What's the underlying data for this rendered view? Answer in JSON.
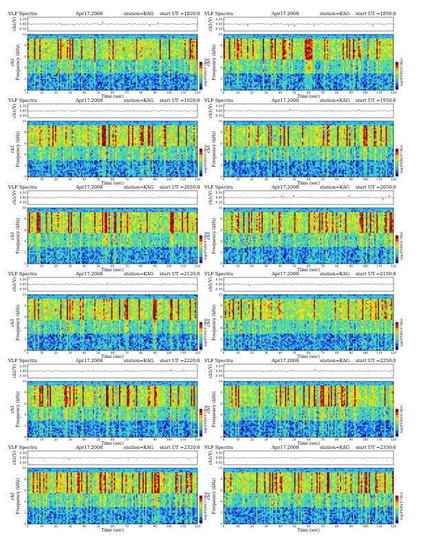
{
  "page_title": "VLF Spectra",
  "colors": {
    "colormap": [
      "#0a1a9a",
      "#1f57e6",
      "#33b8ee",
      "#4fd9a8",
      "#7fe05a",
      "#d8ec22",
      "#f0c020",
      "#e23a12",
      "#9a0a0a"
    ]
  },
  "chart_data": [
    {
      "type": "heatmap",
      "title": "VLF Spectra",
      "month": "Apr17.2008",
      "station": "station=KAG",
      "start": "start  UT =1820:0",
      "ts_ylabel": "ch1(V)",
      "ts_ticks": [
        "0.30",
        "0.00",
        "-0.30"
      ],
      "ylabel": "Frequency (kHz)",
      "xlabel": "Time (sec)",
      "xlim": [
        0,
        120
      ],
      "ylim": [
        0,
        10
      ],
      "xticks": [
        0,
        10,
        20,
        30,
        40,
        50,
        60,
        70,
        80,
        90,
        100,
        110,
        120
      ],
      "yticks": [
        0,
        2,
        4,
        6,
        8,
        10
      ],
      "colorbar_label": "log(PSD)(V²/Hz)",
      "colorbar_ticks": [
        "-",
        "-"
      ]
    },
    {
      "type": "heatmap",
      "title": "VLF Spectra",
      "month": "Apr17.2008",
      "station": "station=KAG",
      "start": "start  UT =1850:0",
      "ts_ylabel": "ch1(V)",
      "ts_ticks": [
        "0.30",
        "0.00",
        "-0.30"
      ],
      "ylabel": "Frequency (kHz)",
      "xlabel": "Time (sec)",
      "xlim": [
        0,
        120
      ],
      "ylim": [
        0,
        10
      ],
      "xticks": [
        0,
        10,
        20,
        30,
        40,
        50,
        60,
        70,
        80,
        90,
        100,
        110,
        120
      ],
      "yticks": [
        0,
        2,
        4,
        6,
        8,
        10
      ],
      "colorbar_label": "log(PSD)(V²/Hz)",
      "colorbar_ticks": [
        "-",
        "-"
      ]
    },
    {
      "type": "heatmap",
      "title": "VLF Spectra",
      "month": "Apr17.2008",
      "station": "station=KAG",
      "start": "start  UT =1920:0",
      "ts_ylabel": "ch1(V)",
      "ts_ticks": [
        "0.30",
        "0.00",
        "-0.30"
      ],
      "ylabel": "Frequency (kHz)",
      "xlabel": "Time (sec)",
      "xlim": [
        0,
        120
      ],
      "ylim": [
        0,
        10
      ],
      "xticks": [
        0,
        10,
        20,
        30,
        40,
        50,
        60,
        70,
        80,
        90,
        100,
        110,
        120
      ],
      "yticks": [
        0,
        2,
        4,
        6,
        8,
        10
      ],
      "colorbar_label": "log(PSD)(V²/Hz)",
      "colorbar_ticks": [
        "-",
        "-"
      ]
    },
    {
      "type": "heatmap",
      "title": "VLF Spectra",
      "month": "Apr17.2008",
      "station": "station=KAG",
      "start": "start  UT =1950:0",
      "ts_ylabel": "ch1(V)",
      "ts_ticks": [
        "0.30",
        "0.00",
        "-0.30"
      ],
      "ylabel": "Frequency (kHz)",
      "xlabel": "Time (sec)",
      "xlim": [
        0,
        120
      ],
      "ylim": [
        0,
        10
      ],
      "xticks": [
        0,
        10,
        20,
        30,
        40,
        50,
        60,
        70,
        80,
        90,
        100,
        110,
        120
      ],
      "yticks": [
        0,
        2,
        4,
        6,
        8,
        10
      ],
      "colorbar_label": "log(PSD)(V²/Hz)",
      "colorbar_ticks": [
        "-",
        "-"
      ]
    },
    {
      "type": "heatmap",
      "title": "VLF Spectra",
      "month": "Apr17.2008",
      "station": "station=KAG",
      "start": "start  UT =2020:0",
      "ts_ylabel": "ch1(V)",
      "ts_ticks": [
        "0.30",
        "0.00",
        "-0.30"
      ],
      "ylabel": "Frequency (kHz)",
      "xlabel": "Time (sec)",
      "xlim": [
        0,
        120
      ],
      "ylim": [
        0,
        10
      ],
      "xticks": [
        0,
        10,
        20,
        30,
        40,
        50,
        60,
        70,
        80,
        90,
        100,
        110,
        120
      ],
      "yticks": [
        0,
        2,
        4,
        6,
        8,
        10
      ],
      "colorbar_label": "log(PSD)(V²/Hz)",
      "colorbar_ticks": [
        "-",
        "-"
      ]
    },
    {
      "type": "heatmap",
      "title": "VLF Spectra",
      "month": "Apr17.2008",
      "station": "station=KAG",
      "start": "start  UT =2050:0",
      "ts_ylabel": "ch1(V)",
      "ts_ticks": [
        "0.30",
        "0.00",
        "-0.30"
      ],
      "ylabel": "Frequency (kHz)",
      "xlabel": "Time (sec)",
      "xlim": [
        0,
        120
      ],
      "ylim": [
        0,
        10
      ],
      "xticks": [
        0,
        10,
        20,
        30,
        40,
        50,
        60,
        70,
        80,
        90,
        100,
        110,
        120
      ],
      "yticks": [
        0,
        2,
        4,
        6,
        8,
        10
      ],
      "colorbar_label": "log(PSD)(V²/Hz)",
      "colorbar_ticks": [
        "-",
        "-"
      ]
    },
    {
      "type": "heatmap",
      "title": "VLF Spectra",
      "month": "Apr17.2008",
      "station": "station=KAG",
      "start": "start  UT =2120:0",
      "ts_ylabel": "ch1(V)",
      "ts_ticks": [
        "0.30",
        "0.00",
        "-0.30"
      ],
      "ylabel": "Frequency (kHz)",
      "xlabel": "Time (sec)",
      "xlim": [
        0,
        120
      ],
      "ylim": [
        0,
        10
      ],
      "xticks": [
        0,
        10,
        20,
        30,
        40,
        50,
        60,
        70,
        80,
        90,
        100,
        110,
        120
      ],
      "yticks": [
        0,
        2,
        4,
        6,
        8,
        10
      ],
      "colorbar_label": "log(PSD)(V²/Hz)",
      "colorbar_ticks": [
        "-",
        "-"
      ]
    },
    {
      "type": "heatmap",
      "title": "VLF Spectra",
      "month": "Apr17.2008",
      "station": "station=KAG",
      "start": "start  UT =2150:0",
      "ts_ylabel": "ch1(V)",
      "ts_ticks": [
        "0.30",
        "0.00",
        "-0.30"
      ],
      "ylabel": "Frequency (kHz)",
      "xlabel": "Time (sec)",
      "xlim": [
        0,
        120
      ],
      "ylim": [
        0,
        10
      ],
      "xticks": [
        0,
        10,
        20,
        30,
        40,
        50,
        60,
        70,
        80,
        90,
        100,
        110,
        120
      ],
      "yticks": [
        0,
        2,
        4,
        6,
        8,
        10
      ],
      "colorbar_label": "log(PSD)(V²/Hz)",
      "colorbar_ticks": [
        "-",
        "-"
      ]
    },
    {
      "type": "heatmap",
      "title": "VLF Spectra",
      "month": "Apr17.2008",
      "station": "station=KAG",
      "start": "start  UT =2220:0",
      "ts_ylabel": "ch1(V)",
      "ts_ticks": [
        "0.30",
        "0.00",
        "-0.30"
      ],
      "ylabel": "Frequency (kHz)",
      "xlabel": "Time (sec)",
      "xlim": [
        0,
        120
      ],
      "ylim": [
        0,
        10
      ],
      "xticks": [
        0,
        10,
        20,
        30,
        40,
        50,
        60,
        70,
        80,
        90,
        100,
        110,
        120
      ],
      "yticks": [
        0,
        2,
        4,
        6,
        8,
        10
      ],
      "colorbar_label": "log(PSD)(V²/Hz)",
      "colorbar_ticks": [
        "-",
        "-"
      ]
    },
    {
      "type": "heatmap",
      "title": "VLF Spectra",
      "month": "Apr17.2008",
      "station": "station=KAG",
      "start": "start  UT =2250:0",
      "ts_ylabel": "ch1(V)",
      "ts_ticks": [
        "0.30",
        "0.00",
        "-0.30"
      ],
      "ylabel": "Frequency (kHz)",
      "xlabel": "Time (sec)",
      "xlim": [
        0,
        120
      ],
      "ylim": [
        0,
        10
      ],
      "xticks": [
        0,
        10,
        20,
        30,
        40,
        50,
        60,
        70,
        80,
        90,
        100,
        110,
        120
      ],
      "yticks": [
        0,
        2,
        4,
        6,
        8,
        10
      ],
      "colorbar_label": "log(PSD)(V²/Hz)",
      "colorbar_ticks": [
        "-",
        "-"
      ]
    },
    {
      "type": "heatmap",
      "title": "VLF Spectra",
      "month": "Apr17.2008",
      "station": "station=KAG",
      "start": "start  UT =2320:0",
      "ts_ylabel": "ch1(V)",
      "ts_ticks": [
        "0.30",
        "0.00",
        "-0.30"
      ],
      "ylabel": "Frequency (kHz)",
      "xlabel": "Time (sec)",
      "xlim": [
        0,
        120
      ],
      "ylim": [
        0,
        10
      ],
      "xticks": [
        0,
        10,
        20,
        30,
        40,
        50,
        60,
        70,
        80,
        90,
        100,
        110,
        120
      ],
      "yticks": [
        0,
        2,
        4,
        6,
        8,
        10
      ],
      "colorbar_label": "log(PSD)(V²/Hz)",
      "colorbar_ticks": [
        "-",
        "-"
      ]
    },
    {
      "type": "heatmap",
      "title": "VLF Spectra",
      "month": "Apr17.2008",
      "station": "station=KAG",
      "start": "start  UT =2350:0",
      "ts_ylabel": "ch1(V)",
      "ts_ticks": [
        "0.30",
        "0.00",
        "-0.30"
      ],
      "ylabel": "Frequency (kHz)",
      "xlabel": "Time (sec)",
      "xlim": [
        0,
        120
      ],
      "ylim": [
        0,
        10
      ],
      "xticks": [
        0,
        10,
        20,
        30,
        40,
        50,
        60,
        70,
        80,
        90,
        100,
        110,
        120
      ],
      "yticks": [
        0,
        2,
        4,
        6,
        8,
        10
      ],
      "colorbar_label": "log(PSD)(V²/Hz)",
      "colorbar_ticks": [
        "-",
        "-"
      ]
    }
  ]
}
